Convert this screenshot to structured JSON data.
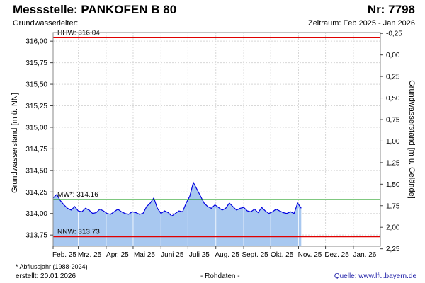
{
  "header": {
    "title": "Messstelle: PANKOFEN B 80",
    "nr": "Nr: 7798",
    "subtitle": "Grundwasserleiter:",
    "zeitraum": "Zeitraum: Feb 2025 - Jan 2026"
  },
  "footer": {
    "footnote": "* Abflussjahr (1988-2024)",
    "erstellt": "erstellt:  20.01.2026",
    "rohdaten": "- Rohdaten -",
    "quelle": "Quelle: www.lfu.bayern.de"
  },
  "colors": {
    "area_fill": "#a8c8f0",
    "line": "#0000e0",
    "hhw": "#e00000",
    "nnw": "#e00000",
    "mw": "#009000",
    "grid": "#d8d8d8"
  },
  "chart_data": {
    "type": "area",
    "xlabel": "",
    "ylabel": "Grundwasserstand [m ü. NN]",
    "ylabel_right": "Grundwasserstand [m u. Gelände]",
    "x_start": "2025-02-01",
    "x_end": "2026-01-31",
    "x_tick_labels": [
      "Feb. 25",
      "Mrz. 25",
      "Apr. 25",
      "Mai 25",
      "Juni 25",
      "Juli 25",
      "Aug. 25",
      "Sept. 25",
      "Okt. 25",
      "Nov. 25",
      "Dez. 25",
      "Jan. 26"
    ],
    "ylim": [
      313.62,
      316.1
    ],
    "y_ticks": [
      "313,75",
      "314,00",
      "314,25",
      "314,50",
      "314,75",
      "315,00",
      "315,25",
      "315,50",
      "315,75",
      "316,00"
    ],
    "y_tick_values": [
      313.75,
      314.0,
      314.25,
      314.5,
      314.75,
      315.0,
      315.25,
      315.5,
      315.75,
      316.0
    ],
    "y2_ticks": [
      "-0,25",
      "0,00",
      "0,25",
      "0,50",
      "0,75",
      "1,00",
      "1,25",
      "1,50",
      "1,75",
      "2,00",
      "2,25"
    ],
    "y2_tick_values": [
      -0.25,
      0.0,
      0.25,
      0.5,
      0.75,
      1.0,
      1.25,
      1.5,
      1.75,
      2.0,
      2.25
    ],
    "ground_level": 315.84,
    "reference_lines": [
      {
        "key": "hhw",
        "label": "HHW: 316.04",
        "value": 316.04
      },
      {
        "key": "mw",
        "label": "MW*: 314.16",
        "value": 314.16
      },
      {
        "key": "nnw",
        "label": "NNW: 313.73",
        "value": 313.73
      }
    ],
    "grid": true,
    "series": [
      {
        "x": [
          "2025-02-01",
          "2025-02-05",
          "2025-02-09",
          "2025-02-13",
          "2025-02-17",
          "2025-02-21",
          "2025-02-25",
          "2025-03-01",
          "2025-03-05",
          "2025-03-09",
          "2025-03-13",
          "2025-03-17",
          "2025-03-21",
          "2025-03-25",
          "2025-03-29",
          "2025-04-02",
          "2025-04-06",
          "2025-04-10",
          "2025-04-14",
          "2025-04-18",
          "2025-04-22",
          "2025-04-26",
          "2025-04-30",
          "2025-05-04",
          "2025-05-08",
          "2025-05-12",
          "2025-05-16",
          "2025-05-20",
          "2025-05-24",
          "2025-05-28",
          "2025-06-01",
          "2025-06-05",
          "2025-06-09",
          "2025-06-13",
          "2025-06-17",
          "2025-06-21",
          "2025-06-25",
          "2025-06-29",
          "2025-07-03",
          "2025-07-07",
          "2025-07-11",
          "2025-07-15",
          "2025-07-19",
          "2025-07-23",
          "2025-07-27",
          "2025-07-31",
          "2025-08-04",
          "2025-08-08",
          "2025-08-12",
          "2025-08-16",
          "2025-08-20",
          "2025-08-24",
          "2025-08-28",
          "2025-09-01",
          "2025-09-05",
          "2025-09-09",
          "2025-09-13",
          "2025-09-17",
          "2025-09-21",
          "2025-09-25",
          "2025-09-29",
          "2025-10-03",
          "2025-10-07",
          "2025-10-11",
          "2025-10-15",
          "2025-10-19",
          "2025-10-23",
          "2025-10-27",
          "2025-10-31",
          "2025-11-04"
        ],
        "values": [
          314.18,
          314.22,
          314.15,
          314.1,
          314.06,
          314.04,
          314.08,
          314.03,
          314.02,
          314.06,
          314.04,
          314.0,
          314.01,
          314.05,
          314.03,
          314.0,
          313.99,
          314.02,
          314.05,
          314.02,
          314.0,
          313.99,
          314.02,
          314.01,
          313.99,
          314.0,
          314.08,
          314.12,
          314.18,
          314.06,
          314.0,
          314.03,
          314.01,
          313.97,
          314.0,
          314.03,
          314.02,
          314.12,
          314.2,
          314.36,
          314.28,
          314.2,
          314.12,
          314.08,
          314.06,
          314.1,
          314.07,
          314.04,
          314.06,
          314.12,
          314.08,
          314.04,
          314.06,
          314.07,
          314.03,
          314.02,
          314.05,
          314.01,
          314.07,
          314.03,
          314.0,
          314.02,
          314.05,
          314.03,
          314.01,
          314.0,
          314.02,
          314.0,
          314.12,
          314.06
        ]
      }
    ]
  }
}
